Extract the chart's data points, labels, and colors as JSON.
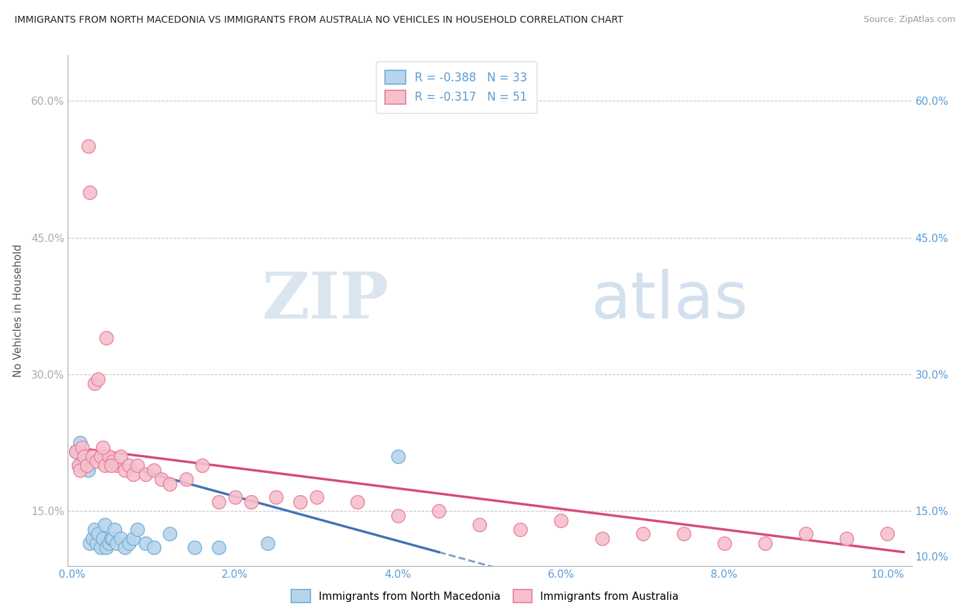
{
  "title": "IMMIGRANTS FROM NORTH MACEDONIA VS IMMIGRANTS FROM AUSTRALIA NO VEHICLES IN HOUSEHOLD CORRELATION CHART",
  "source": "Source: ZipAtlas.com",
  "ylabel": "No Vehicles in Household",
  "watermark_zip": "ZIP",
  "watermark_atlas": "atlas",
  "xlim": [
    -0.05,
    10.3
  ],
  "ylim": [
    9.0,
    65.0
  ],
  "x_ticks": [
    0.0,
    2.0,
    4.0,
    6.0,
    8.0,
    10.0
  ],
  "x_tick_labels": [
    "0.0%",
    "2.0%",
    "4.0%",
    "6.0%",
    "8.0%",
    "10.0%"
  ],
  "y_ticks_left": [
    15.0,
    30.0,
    45.0,
    60.0
  ],
  "y_ticks_right": [
    10.0,
    15.0,
    30.0,
    45.0,
    60.0
  ],
  "y_tick_labels_left": [
    "15.0%",
    "30.0%",
    "45.0%",
    "60.0%"
  ],
  "y_tick_labels_right": [
    "10.0%",
    "15.0%",
    "30.0%",
    "45.0%",
    "60.0%"
  ],
  "legend_line1": "R = -0.388   N = 33",
  "legend_line2": "R = -0.317   N = 51",
  "color_blue_fill": "#b8d4ec",
  "color_blue_edge": "#6aaed6",
  "color_pink_fill": "#f5c0cc",
  "color_pink_edge": "#e87a99",
  "color_blue_line": "#4472b8",
  "color_pink_line": "#d64b7a",
  "color_axis_blue": "#5b9bd5",
  "color_grid": "#c8c8c8",
  "nm_x": [
    0.05,
    0.08,
    0.1,
    0.12,
    0.15,
    0.18,
    0.2,
    0.22,
    0.25,
    0.28,
    0.3,
    0.32,
    0.35,
    0.38,
    0.4,
    0.42,
    0.45,
    0.48,
    0.5,
    0.52,
    0.55,
    0.6,
    0.65,
    0.7,
    0.75,
    0.8,
    0.9,
    1.0,
    1.2,
    1.5,
    1.8,
    2.4,
    4.0
  ],
  "nm_y": [
    21.5,
    20.0,
    22.5,
    20.0,
    20.5,
    20.0,
    19.5,
    11.5,
    12.0,
    13.0,
    11.5,
    12.5,
    11.0,
    12.0,
    13.5,
    11.0,
    11.5,
    12.0,
    12.0,
    13.0,
    11.5,
    12.0,
    11.0,
    11.5,
    12.0,
    13.0,
    11.5,
    11.0,
    12.5,
    11.0,
    11.0,
    11.5,
    21.0
  ],
  "au_x": [
    0.05,
    0.08,
    0.1,
    0.12,
    0.15,
    0.18,
    0.2,
    0.22,
    0.25,
    0.3,
    0.35,
    0.4,
    0.42,
    0.45,
    0.5,
    0.55,
    0.6,
    0.65,
    0.7,
    0.75,
    0.8,
    0.9,
    1.0,
    1.1,
    1.2,
    1.4,
    1.6,
    1.8,
    2.0,
    2.2,
    2.5,
    2.8,
    3.0,
    3.5,
    4.0,
    4.5,
    5.0,
    5.5,
    6.0,
    6.5,
    7.0,
    7.5,
    8.0,
    8.5,
    9.0,
    9.5,
    10.0,
    0.28,
    0.32,
    0.38,
    0.48
  ],
  "au_y": [
    21.5,
    20.0,
    19.5,
    22.0,
    21.0,
    20.0,
    55.0,
    50.0,
    21.0,
    20.5,
    21.0,
    20.0,
    34.0,
    21.0,
    20.5,
    20.0,
    21.0,
    19.5,
    20.0,
    19.0,
    20.0,
    19.0,
    19.5,
    18.5,
    18.0,
    18.5,
    20.0,
    16.0,
    16.5,
    16.0,
    16.5,
    16.0,
    16.5,
    16.0,
    14.5,
    15.0,
    13.5,
    13.0,
    14.0,
    12.0,
    12.5,
    12.5,
    11.5,
    11.5,
    12.5,
    12.0,
    12.5,
    29.0,
    29.5,
    22.0,
    20.0
  ],
  "nm_line_x0": 0.0,
  "nm_line_x1": 4.5,
  "nm_line_y0": 21.5,
  "nm_line_y1": 10.5,
  "au_line_x0": 0.0,
  "au_line_x1": 10.2,
  "au_line_y0": 22.0,
  "au_line_y1": 10.5
}
